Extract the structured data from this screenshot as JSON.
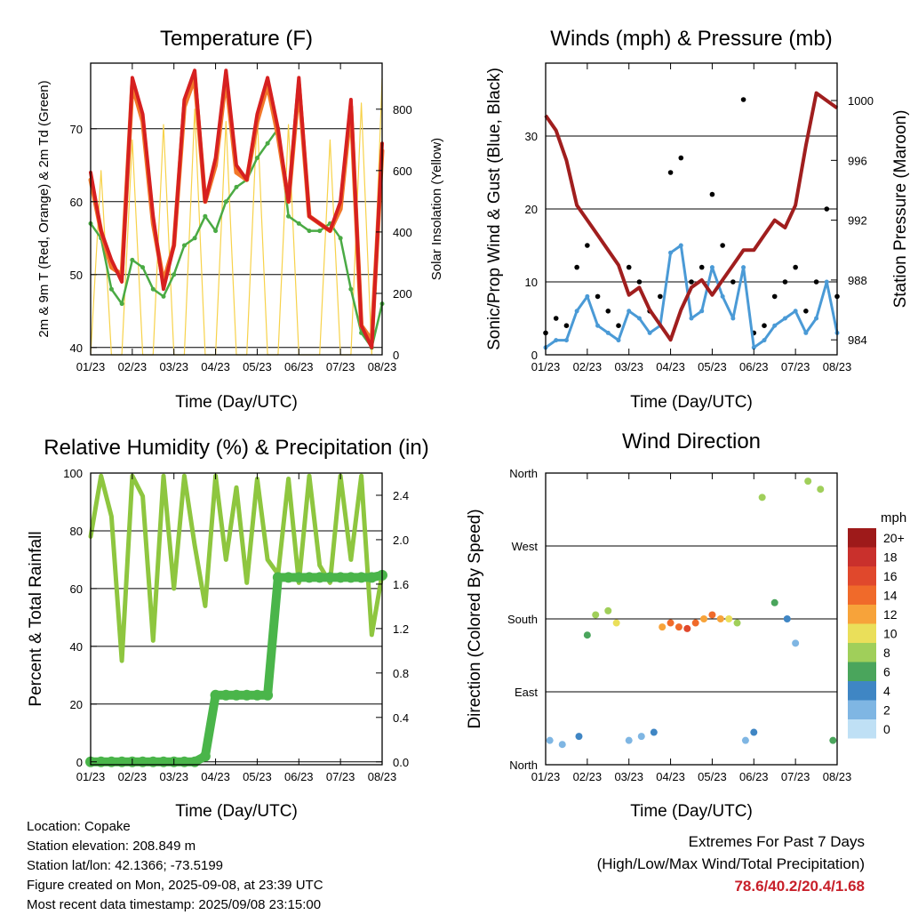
{
  "info": {
    "location": "Location: Copake",
    "elevation": "Station elevation: 208.849 m",
    "latlon": "Station lat/lon: 42.1366; -73.5199",
    "created": "Figure created on Mon, 2025-09-08, at 23:39 UTC",
    "recent": "Most recent data timestamp: 2025/09/08 23:15:00"
  },
  "extremes": {
    "line1": "Extremes For Past 7 Days",
    "line2": "(High/Low/Max Wind/Total Precipitation)",
    "values": "78.6/40.2/20.4/1.68"
  },
  "chart_data": [
    {
      "type": "line",
      "title": "Temperature (F)",
      "xlabel": "Time (Day/UTC)",
      "ylabel": "2m & 9m T (Red, Orange) & 2m Td (Green)",
      "y2label": "Solar Insolation (Yellow)",
      "x_ticks": [
        "01/23",
        "02/23",
        "03/23",
        "04/23",
        "05/23",
        "06/23",
        "07/23",
        "08/23"
      ],
      "ylim": [
        39,
        79
      ],
      "y_ticks": [
        40,
        50,
        60,
        70
      ],
      "y2lim": [
        0,
        950
      ],
      "y2_ticks": [
        0,
        200,
        400,
        600,
        800
      ],
      "x": [
        0,
        0.25,
        0.5,
        0.75,
        1,
        1.25,
        1.5,
        1.75,
        2,
        2.25,
        2.5,
        2.75,
        3,
        3.25,
        3.5,
        3.75,
        4,
        4.25,
        4.5,
        4.75,
        5,
        5.25,
        5.5,
        5.75,
        6,
        6.25,
        6.5,
        6.75,
        7
      ],
      "series": [
        {
          "color": "#d62020",
          "values": [
            64,
            56,
            52,
            49,
            77,
            72,
            58,
            48,
            54,
            74,
            78,
            60,
            66,
            78,
            65,
            63,
            72,
            77,
            70,
            60,
            77,
            58,
            57,
            56,
            60,
            74,
            43,
            40,
            68
          ]
        },
        {
          "color": "#f2782a",
          "values": [
            63,
            56,
            51,
            50,
            76,
            71,
            57,
            49,
            54,
            73,
            77,
            60,
            65,
            77,
            64,
            63,
            71,
            76,
            69,
            60,
            76,
            58,
            57,
            56,
            59,
            73,
            43,
            41,
            67
          ]
        },
        {
          "color": "#4aaa44",
          "values": [
            57,
            55,
            48,
            46,
            52,
            51,
            48,
            47,
            50,
            54,
            55,
            58,
            56,
            60,
            62,
            63,
            66,
            68,
            70,
            58,
            57,
            56,
            56,
            57,
            55,
            48,
            42,
            40,
            46
          ]
        },
        {
          "color": "#f7d24a",
          "values": [
            0,
            600,
            0,
            0,
            700,
            0,
            0,
            750,
            0,
            0,
            800,
            0,
            0,
            760,
            0,
            0,
            780,
            0,
            0,
            750,
            0,
            0,
            0,
            700,
            0,
            0,
            820,
            0,
            900
          ]
        }
      ]
    },
    {
      "type": "scatter",
      "title": "Winds (mph) & Pressure (mb)",
      "xlabel": "Time (Day/UTC)",
      "ylabel": "Sonic/Prop Wind & Gust (Blue, Black)",
      "y2label": "Station Pressure (Maroon)",
      "x_ticks": [
        "01/23",
        "02/23",
        "03/23",
        "04/23",
        "05/23",
        "06/23",
        "07/23",
        "08/23"
      ],
      "ylim": [
        0,
        40
      ],
      "y_ticks": [
        0,
        10,
        20,
        30
      ],
      "y2lim": [
        983,
        1002.5
      ],
      "y2_ticks": [
        984,
        988,
        992,
        996,
        1000
      ],
      "x": [
        0,
        0.25,
        0.5,
        0.75,
        1,
        1.25,
        1.5,
        1.75,
        2,
        2.25,
        2.5,
        2.75,
        3,
        3.25,
        3.5,
        3.75,
        4,
        4.25,
        4.5,
        4.75,
        5,
        5.25,
        5.5,
        5.75,
        6,
        6.25,
        6.5,
        6.75,
        7
      ],
      "series": [
        {
          "name": "Gust",
          "color": "#000000",
          "values": [
            3,
            5,
            4,
            12,
            15,
            8,
            6,
            4,
            12,
            10,
            6,
            8,
            25,
            27,
            10,
            12,
            22,
            15,
            10,
            35,
            3,
            4,
            8,
            10,
            12,
            6,
            10,
            20,
            8
          ]
        },
        {
          "name": "Wind",
          "color": "#4a9ad6",
          "values": [
            1,
            2,
            2,
            6,
            8,
            4,
            3,
            2,
            6,
            5,
            3,
            4,
            14,
            15,
            5,
            6,
            12,
            8,
            5,
            12,
            1,
            2,
            4,
            5,
            6,
            3,
            5,
            10,
            3
          ]
        },
        {
          "name": "Pressure",
          "color": "#a01e1e",
          "values": [
            999,
            998,
            996,
            993,
            992,
            991,
            990,
            989,
            987,
            987.5,
            986,
            985,
            984,
            986,
            987.5,
            988,
            987,
            988,
            989,
            990,
            990,
            991,
            992,
            991.5,
            993,
            997,
            1000.5,
            1000,
            999.5
          ]
        }
      ]
    },
    {
      "type": "line",
      "title": "Relative Humidity (%) & Precipitation (in)",
      "xlabel": "Time (Day/UTC)",
      "ylabel": "Percent & Total Rainfall",
      "x_ticks": [
        "01/23",
        "02/23",
        "03/23",
        "04/23",
        "05/23",
        "06/23",
        "07/23",
        "08/23"
      ],
      "ylim": [
        -1,
        100
      ],
      "y_ticks": [
        0,
        20,
        40,
        60,
        80,
        100
      ],
      "y2lim": [
        -0.026,
        2.6
      ],
      "y2_ticks": [
        0.0,
        0.4,
        0.8,
        1.2,
        1.6,
        2.0,
        2.4
      ],
      "x": [
        0,
        0.25,
        0.5,
        0.75,
        1,
        1.25,
        1.5,
        1.75,
        2,
        2.25,
        2.5,
        2.75,
        3,
        3.25,
        3.5,
        3.75,
        4,
        4.25,
        4.5,
        4.75,
        5,
        5.25,
        5.5,
        5.75,
        6,
        6.25,
        6.5,
        6.75,
        7
      ],
      "series": [
        {
          "color": "#8ec63f",
          "values": [
            78,
            99,
            85,
            35,
            99,
            92,
            42,
            99,
            60,
            99,
            75,
            54,
            99,
            70,
            95,
            62,
            98,
            70,
            65,
            98,
            62,
            99,
            68,
            62,
            99,
            70,
            99,
            44,
            65
          ]
        },
        {
          "color": "#4ab54a",
          "values": [
            0,
            0,
            0,
            0,
            0,
            0,
            0,
            0,
            0,
            0,
            0,
            0.05,
            0.6,
            0.6,
            0.6,
            0.6,
            0.6,
            0.6,
            1.66,
            1.66,
            1.66,
            1.66,
            1.66,
            1.66,
            1.66,
            1.66,
            1.66,
            1.66,
            1.68
          ]
        }
      ]
    },
    {
      "type": "scatter",
      "title": "Wind Direction",
      "xlabel": "Time (Day/UTC)",
      "ylabel": "Direction (Colored By Speed)",
      "x_ticks": [
        "01/23",
        "02/23",
        "03/23",
        "04/23",
        "05/23",
        "06/23",
        "07/23",
        "08/23"
      ],
      "y_ticks": [
        "North",
        "East",
        "South",
        "West",
        "North"
      ],
      "ylim": [
        0,
        360
      ],
      "legend": {
        "title": "mph",
        "labels": [
          "20+",
          "18",
          "16",
          "14",
          "12",
          "10",
          "8",
          "6",
          "4",
          "2",
          "0"
        ],
        "colors": [
          "#9e1a1a",
          "#c9302c",
          "#e0482c",
          "#f06a2a",
          "#f7a33a",
          "#eadf5a",
          "#a0cf5a",
          "#4aa55c",
          "#3f86c4",
          "#7fb6e3",
          "#bfe0f5"
        ]
      },
      "x": [
        0.1,
        0.4,
        0.8,
        1.0,
        1.2,
        1.5,
        1.7,
        2.0,
        2.3,
        2.6,
        2.8,
        3.0,
        3.2,
        3.4,
        3.6,
        3.8,
        4.0,
        4.2,
        4.4,
        4.6,
        4.8,
        5.0,
        5.2,
        5.5,
        5.8,
        6.0,
        6.3,
        6.6,
        6.9
      ],
      "series": [
        {
          "name": "direction",
          "values": [
            30,
            25,
            35,
            160,
            185,
            190,
            175,
            30,
            35,
            40,
            170,
            175,
            170,
            168,
            175,
            180,
            185,
            180,
            180,
            175,
            30,
            40,
            330,
            200,
            180,
            150,
            350,
            340,
            30
          ]
        },
        {
          "name": "speed",
          "values": [
            2,
            2,
            3,
            6,
            8,
            8,
            10,
            2,
            2,
            3,
            12,
            13,
            14,
            15,
            14,
            12,
            13,
            12,
            10,
            8,
            2,
            3,
            8,
            6,
            4,
            2,
            8,
            8,
            6
          ]
        }
      ]
    }
  ]
}
